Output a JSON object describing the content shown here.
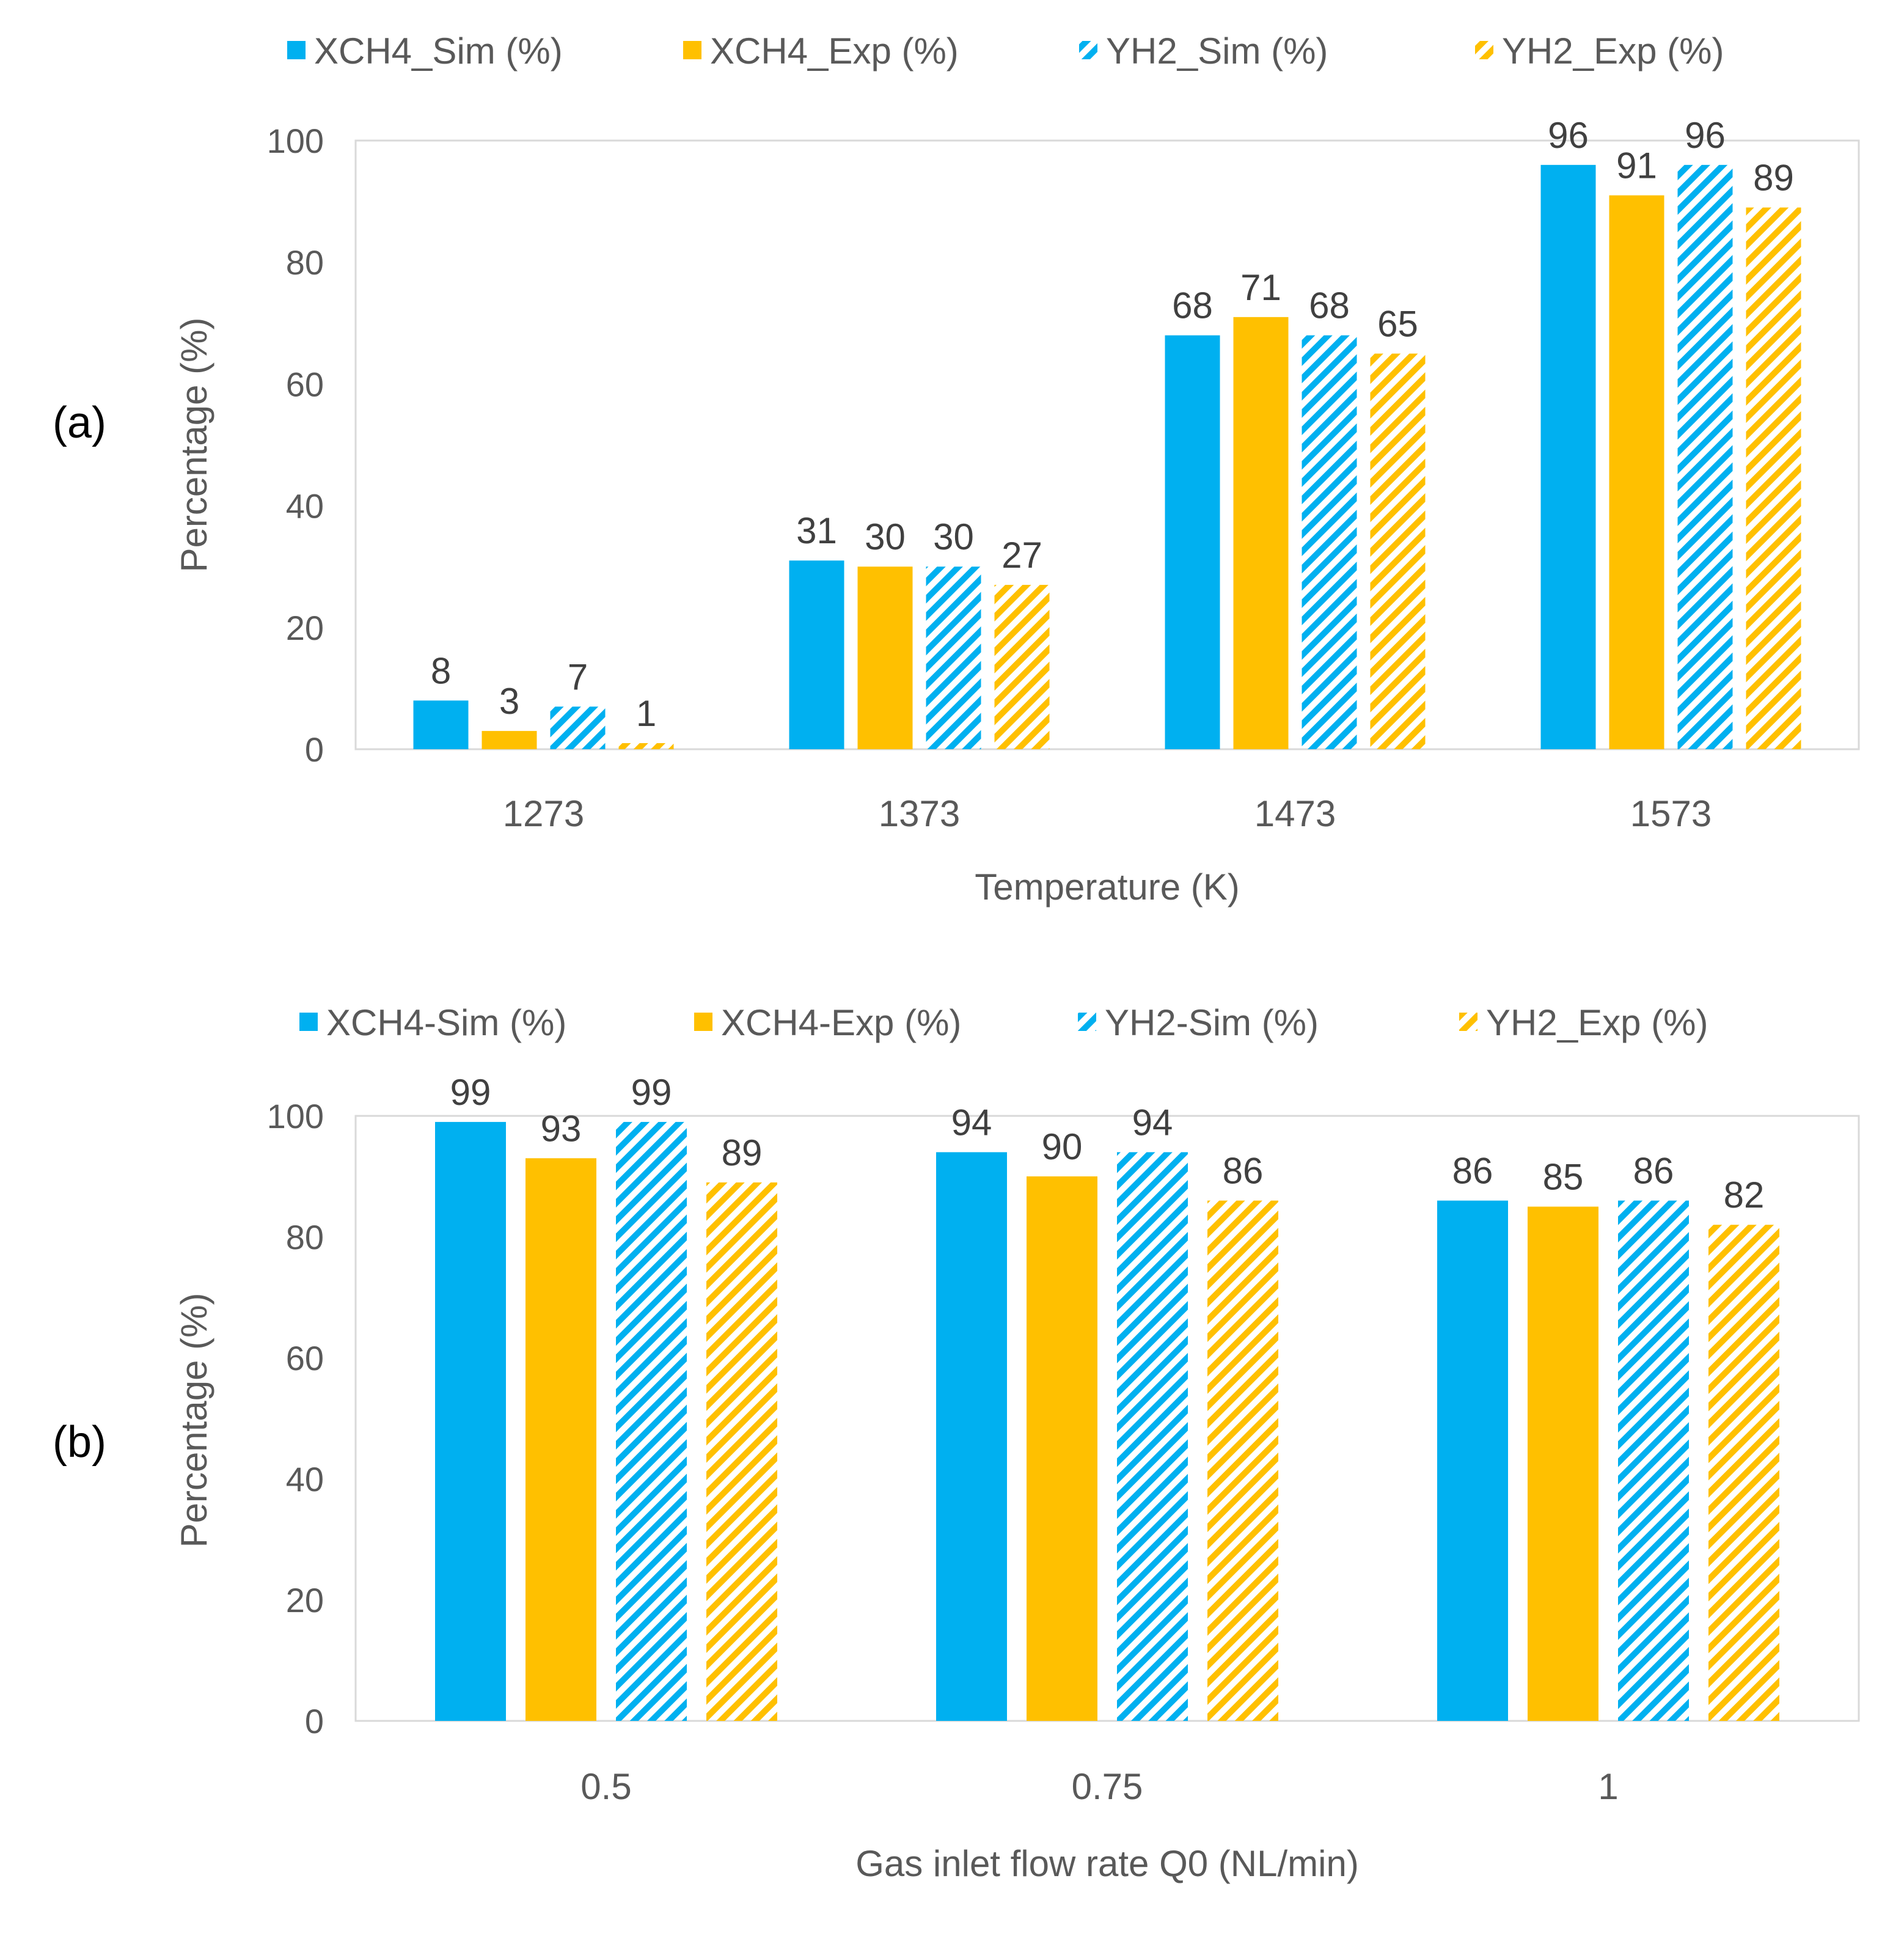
{
  "chart_data": [
    {
      "type": "bar",
      "panel_label": "(a)",
      "title": "",
      "xlabel": "Temperature (K)",
      "ylabel": "Percentage (%)",
      "ylim": [
        0,
        100
      ],
      "yticks": [
        0,
        20,
        40,
        60,
        80,
        100
      ],
      "grid": false,
      "legend_position": "top",
      "categories": [
        "1273",
        "1373",
        "1473",
        "1573"
      ],
      "series": [
        {
          "name": "XCH4_Sim (%)",
          "color": "#00B0F0",
          "pattern": "solid",
          "values": [
            8,
            31,
            68,
            96
          ]
        },
        {
          "name": "XCH4_Exp (%)",
          "color": "#FFC000",
          "pattern": "solid",
          "values": [
            3,
            30,
            71,
            91
          ]
        },
        {
          "name": "YH2_Sim (%)",
          "color": "#00B0F0",
          "pattern": "hatch",
          "values": [
            7,
            30,
            68,
            96
          ]
        },
        {
          "name": "YH2_Exp (%)",
          "color": "#FFC000",
          "pattern": "hatch",
          "values": [
            1,
            27,
            65,
            89
          ]
        }
      ]
    },
    {
      "type": "bar",
      "panel_label": "(b)",
      "title": "",
      "xlabel": "Gas inlet flow rate Q0 (NL/min)",
      "ylabel": "Percentage (%)",
      "ylim": [
        0,
        100
      ],
      "yticks": [
        0,
        20,
        40,
        60,
        80,
        100
      ],
      "grid": false,
      "legend_position": "top",
      "categories": [
        "0.5",
        "0.75",
        "1"
      ],
      "series": [
        {
          "name": "XCH4-Sim (%)",
          "color": "#00B0F0",
          "pattern": "solid",
          "values": [
            99,
            94,
            86
          ]
        },
        {
          "name": "XCH4-Exp (%)",
          "color": "#FFC000",
          "pattern": "solid",
          "values": [
            93,
            90,
            85
          ]
        },
        {
          "name": "YH2-Sim (%)",
          "color": "#00B0F0",
          "pattern": "hatch",
          "values": [
            99,
            94,
            86
          ]
        },
        {
          "name": "YH2_Exp (%)",
          "color": "#FFC000",
          "pattern": "hatch",
          "values": [
            89,
            86,
            82
          ]
        }
      ]
    }
  ]
}
